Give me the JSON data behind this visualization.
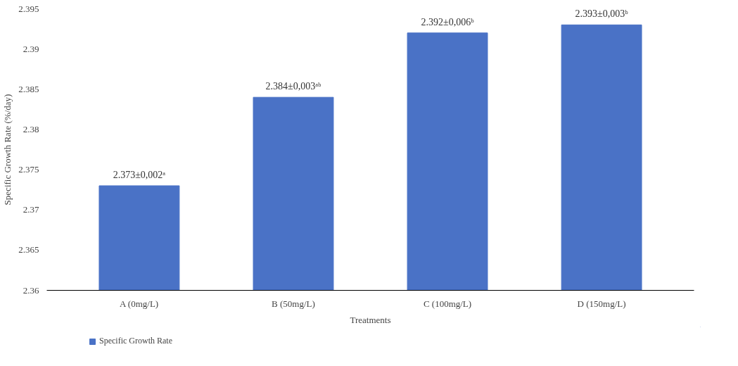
{
  "chart_data": {
    "type": "bar",
    "xlabel": "Treatments",
    "ylabel": "Specific Growth Rate (%/day)",
    "categories": [
      "A (0mg/L)",
      "B (50mg/L)",
      "C (100mg/L)",
      "D (150mg/L)"
    ],
    "series": [
      {
        "name": "Specific Growth Rate",
        "color": "#4a72c6",
        "values": [
          2.373,
          2.384,
          2.392,
          2.393
        ]
      }
    ],
    "value_labels": [
      "2.373±0,002ᵃ",
      "2.384±0,003ᵃᵇ",
      "2.392±0,006ᵇ",
      "2.393±0,003ᵇ"
    ],
    "ylim": [
      2.36,
      2.395
    ],
    "yticks": [
      2.36,
      2.365,
      2.37,
      2.375,
      2.38,
      2.385,
      2.39,
      2.395
    ],
    "grid": false,
    "legend": "bottom left"
  }
}
